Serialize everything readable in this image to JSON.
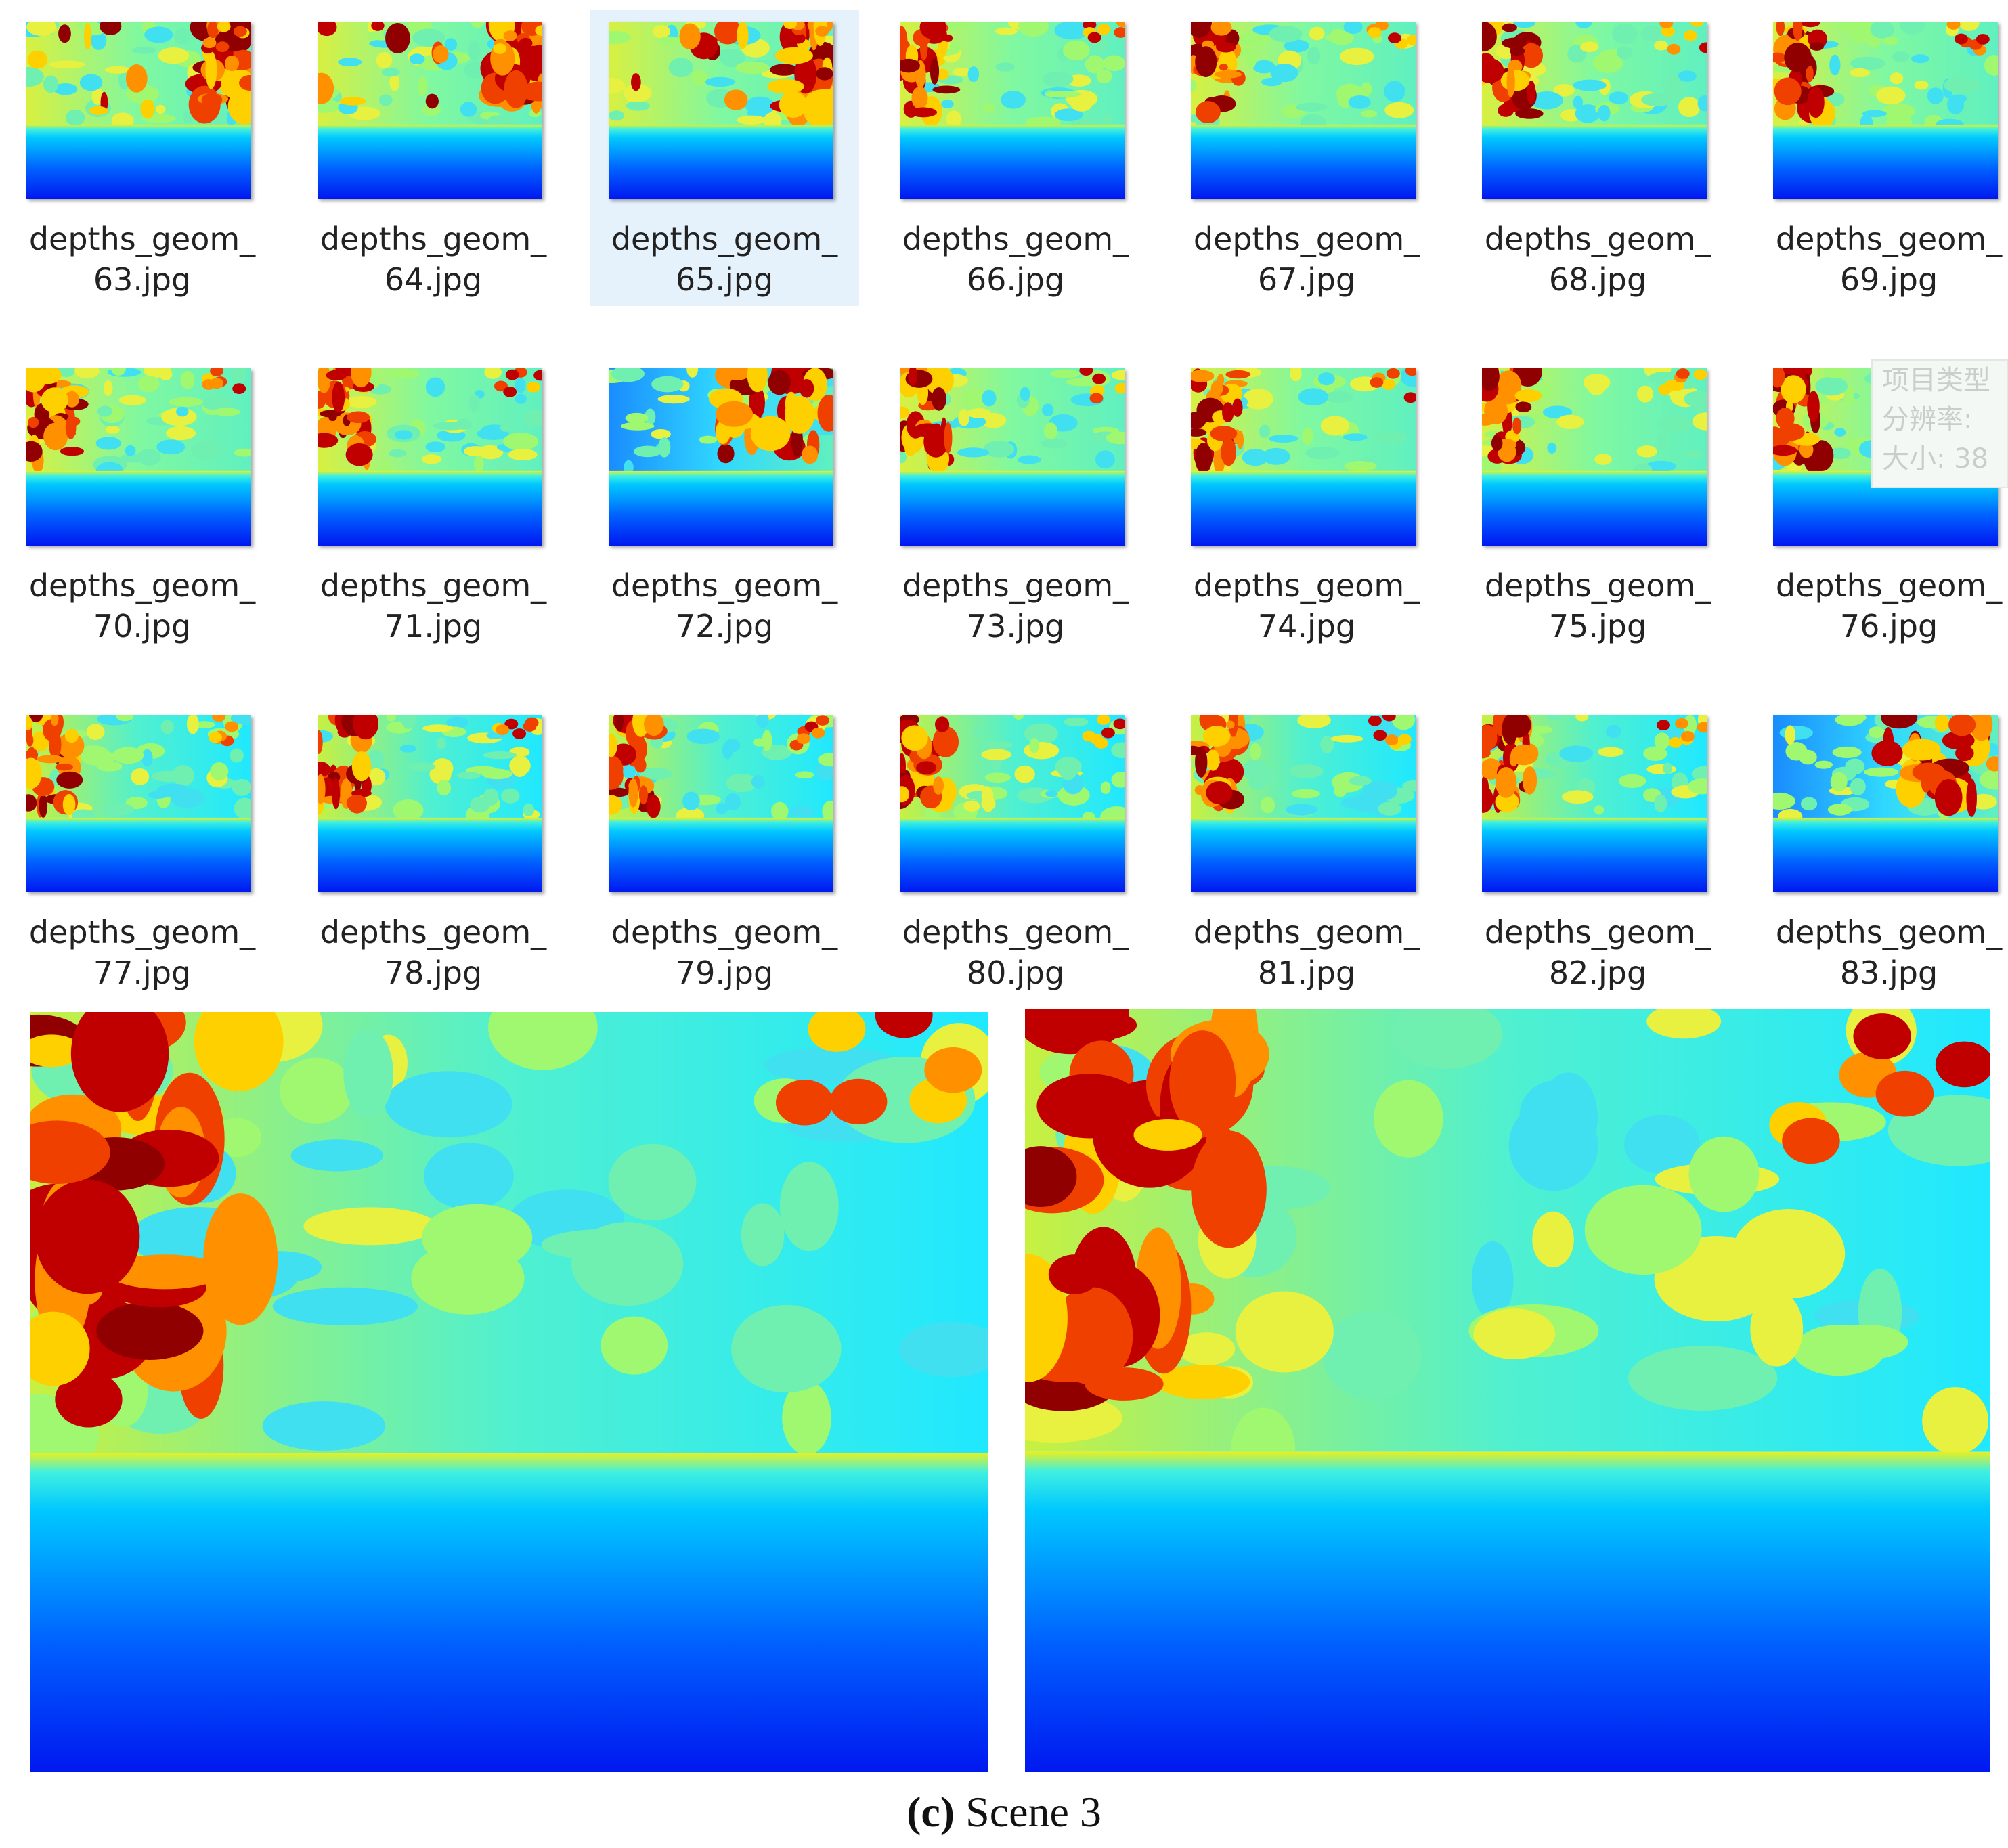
{
  "files": [
    {
      "line1": "depths_geom_",
      "line2": "63.jpg"
    },
    {
      "line1": "depths_geom_",
      "line2": "64.jpg"
    },
    {
      "line1": "depths_geom_",
      "line2": "65.jpg"
    },
    {
      "line1": "depths_geom_",
      "line2": "66.jpg"
    },
    {
      "line1": "depths_geom_",
      "line2": "67.jpg"
    },
    {
      "line1": "depths_geom_",
      "line2": "68.jpg"
    },
    {
      "line1": "depths_geom_",
      "line2": "69.jpg"
    },
    {
      "line1": "depths_geom_",
      "line2": "70.jpg"
    },
    {
      "line1": "depths_geom_",
      "line2": "71.jpg"
    },
    {
      "line1": "depths_geom_",
      "line2": "72.jpg"
    },
    {
      "line1": "depths_geom_",
      "line2": "73.jpg"
    },
    {
      "line1": "depths_geom_",
      "line2": "74.jpg"
    },
    {
      "line1": "depths_geom_",
      "line2": "75.jpg"
    },
    {
      "line1": "depths_geom_",
      "line2": "76.jpg"
    },
    {
      "line1": "depths_geom_",
      "line2": "77.jpg"
    },
    {
      "line1": "depths_geom_",
      "line2": "78.jpg"
    },
    {
      "line1": "depths_geom_",
      "line2": "79.jpg"
    },
    {
      "line1": "depths_geom_",
      "line2": "80.jpg"
    },
    {
      "line1": "depths_geom_",
      "line2": "81.jpg"
    },
    {
      "line1": "depths_geom_",
      "line2": "82.jpg"
    },
    {
      "line1": "depths_geom_",
      "line2": "83.jpg"
    }
  ],
  "tooltip": [
    "项目类型",
    "分辨率:",
    "大小: 38"
  ],
  "caption": {
    "label": "(c)",
    "text": "Scene 3"
  }
}
